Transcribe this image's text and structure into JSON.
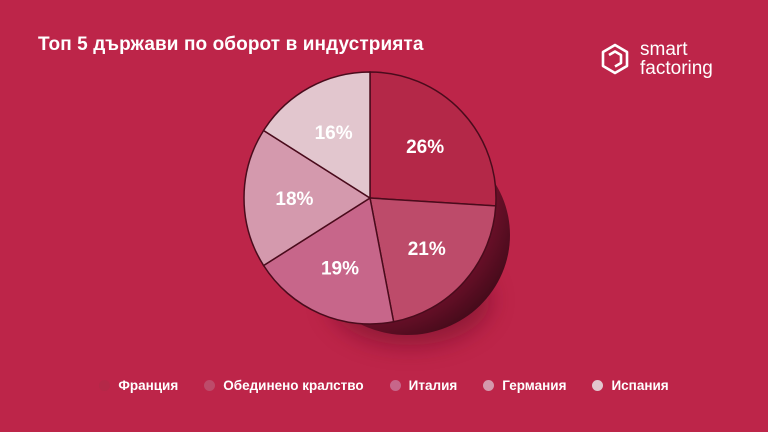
{
  "title": "Топ 5 държави по оборот в индустрията",
  "logo": {
    "line1": "smart",
    "line2": "factoring",
    "icon": "hexagon-logo-icon"
  },
  "colors": {
    "background": "#bd2549",
    "shadow": "#7a1029"
  },
  "chart_data": {
    "type": "pie",
    "categories": [
      "Франция",
      "Обединено кралство",
      "Италия",
      "Германия",
      "Испания"
    ],
    "values": [
      26,
      21,
      19,
      18,
      16
    ],
    "labels": [
      "26%",
      "21%",
      "19%",
      "18%",
      "16%"
    ],
    "colors": [
      "#b42848",
      "#bd4b6a",
      "#c7668a",
      "#d499ad",
      "#e2c6ce"
    ],
    "legend_placement": "bottom"
  }
}
